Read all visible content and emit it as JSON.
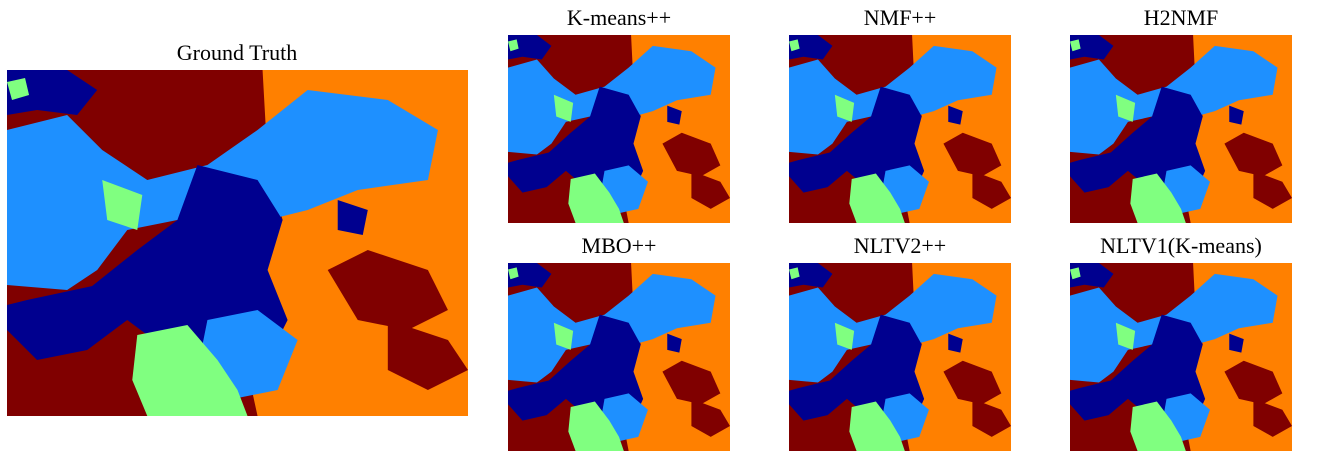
{
  "ground_truth": {
    "title": "Ground Truth"
  },
  "panels": [
    {
      "title": "K-means++"
    },
    {
      "title": "NMF++"
    },
    {
      "title": "H2NMF"
    },
    {
      "title": "MBO++"
    },
    {
      "title": "NLTV2++"
    },
    {
      "title": "NLTV1(K-means)"
    }
  ]
}
